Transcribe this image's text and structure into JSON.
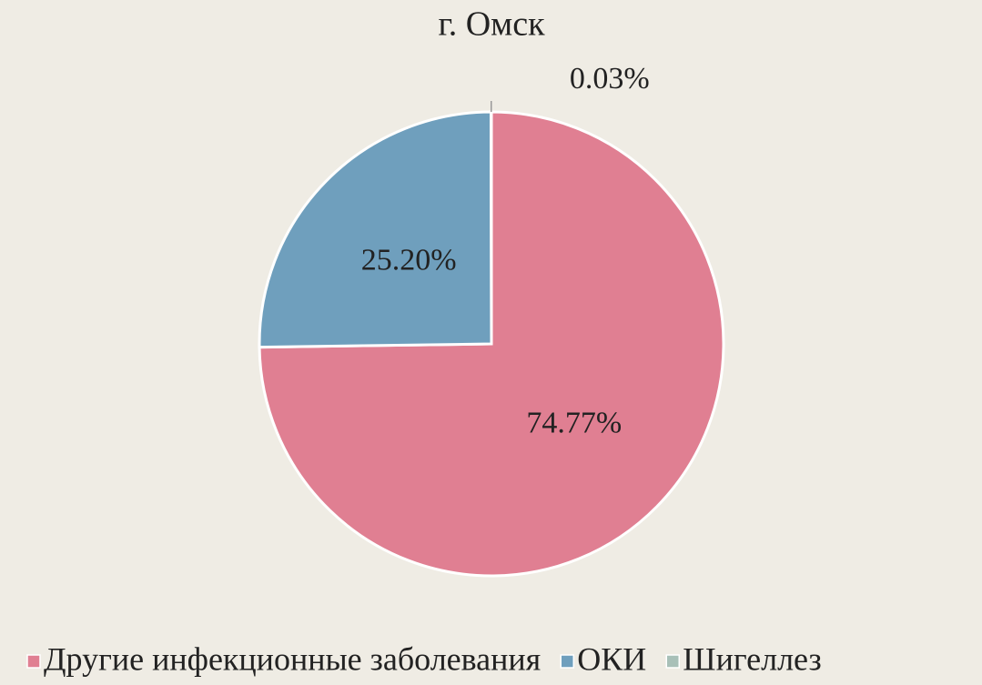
{
  "chart_data": {
    "type": "pie",
    "title": "г. Омск",
    "categories": [
      "Другие инфекционные заболевания",
      "ОКИ",
      "Шигеллез"
    ],
    "values": [
      74.77,
      25.2,
      0.03
    ],
    "value_labels": [
      "74.77%",
      "25.20%",
      "0.03%"
    ],
    "colors": [
      "#e07f92",
      "#6f9fbd",
      "#a8c0b8"
    ],
    "legend": "bottom"
  }
}
